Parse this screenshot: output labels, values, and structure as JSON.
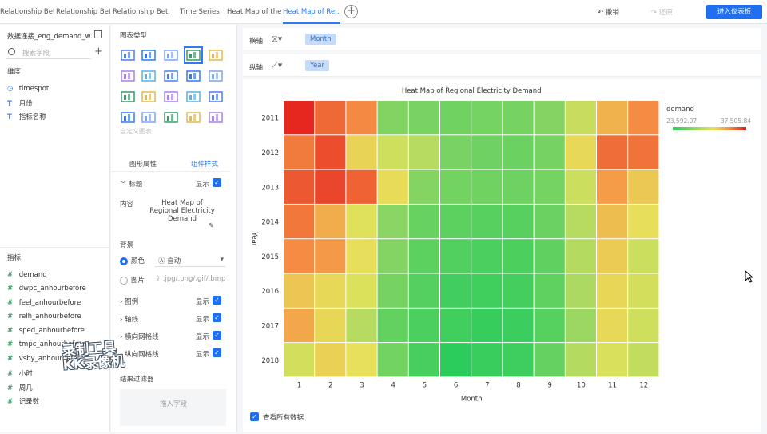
{
  "tabs": [
    {
      "label": "Relationship Bet...",
      "active": false
    },
    {
      "label": "Relationship Bet...",
      "active": false
    },
    {
      "label": "Relationship Bet...",
      "active": false
    },
    {
      "label": "Time Series",
      "active": false
    },
    {
      "label": "Heat Map of the...",
      "active": false
    },
    {
      "label": "Heat Map of Re...",
      "active": true
    }
  ],
  "toolbar": {
    "undo": "↶ 撤销",
    "redo": "↷ 还原",
    "primary": "进入仪表板"
  },
  "left": {
    "dataset": "数据连接_eng_demand_w...",
    "search_placeholder": "搜索字段",
    "dimension_title": "维度",
    "dimensions": [
      {
        "icon": "◷",
        "label": "timespot"
      },
      {
        "icon": "T",
        "label": "月份"
      },
      {
        "icon": "T",
        "label": "指标名称"
      }
    ],
    "measure_title": "指标",
    "measures": [
      {
        "icon": "#",
        "label": "demand"
      },
      {
        "icon": "#",
        "label": "dwpc_anhourbefore"
      },
      {
        "icon": "#",
        "label": "feel_anhourbefore"
      },
      {
        "icon": "#",
        "label": "relh_anhourbefore"
      },
      {
        "icon": "#",
        "label": "sped_anhourbefore"
      },
      {
        "icon": "#",
        "label": "tmpc_anhourbefore"
      },
      {
        "icon": "#",
        "label": "vsby_anhourbefore"
      },
      {
        "icon": "#",
        "label": "小时"
      },
      {
        "icon": "#",
        "label": "周几"
      },
      {
        "icon": "#",
        "label": "记录数"
      }
    ]
  },
  "mid": {
    "title": "图表类型",
    "custom_label": "自定义图表",
    "tab_props": "图形属性",
    "tab_style": "组件样式",
    "title_row": "标题",
    "show": "显示",
    "content_label": "内容",
    "content_value": "Heat Map of Regional Electricity Demand",
    "background_label": "背景",
    "color_label": "颜色",
    "auto_label": "自动",
    "image_label": "图片",
    "image_hint": ".jpg/.png/.gif/.bmp",
    "legend": "图例",
    "axis": "轴线",
    "hgrid": "横向网格线",
    "vgrid": "纵向网格线",
    "filter_label": "结果过滤器",
    "input_placeholder": "拖入字段"
  },
  "axes": {
    "x_label": "横轴",
    "x_field": "Month",
    "y_label": "纵轴",
    "y_field": "Year"
  },
  "footer": {
    "view_all": "查看所有数据"
  },
  "watermark": {
    "line1": "录制工具",
    "line2": "KK录像机"
  },
  "colors": {
    "accent": "#1f6ff0",
    "low": "#2ccc5c",
    "mid": "#e6e25a",
    "high": "#e41c1c"
  },
  "chart_data": {
    "type": "heatmap",
    "title": "Heat Map of Regional Electricity Demand",
    "xlabel": "Month",
    "ylabel": "Year",
    "x": [
      "1",
      "2",
      "3",
      "4",
      "5",
      "6",
      "7",
      "8",
      "9",
      "10",
      "11",
      "12"
    ],
    "y": [
      "2011",
      "2012",
      "2013",
      "2014",
      "2015",
      "2016",
      "2017",
      "2018"
    ],
    "values": [
      [
        37200,
        35300,
        34400,
        27500,
        27100,
        26700,
        26900,
        27000,
        27700,
        30200,
        33000,
        34300
      ],
      [
        34800,
        36100,
        31800,
        30400,
        29600,
        27100,
        26600,
        26500,
        27000,
        31600,
        35200,
        35000
      ],
      [
        35800,
        36300,
        35500,
        31500,
        27600,
        26800,
        26700,
        26600,
        26900,
        30300,
        33800,
        32200
      ],
      [
        34900,
        33200,
        31000,
        27900,
        26300,
        25800,
        25600,
        25600,
        26500,
        29600,
        32600,
        31400
      ],
      [
        34300,
        33900,
        31400,
        27600,
        25800,
        25300,
        25000,
        25100,
        26000,
        29500,
        32100,
        30300
      ],
      [
        32300,
        31600,
        30900,
        27000,
        25400,
        24600,
        24500,
        24700,
        25900,
        29200,
        31700,
        30600
      ],
      [
        33400,
        31700,
        29600,
        26100,
        25000,
        24500,
        24100,
        24300,
        25500,
        28700,
        31600,
        30400
      ],
      [
        30500,
        31900,
        31300,
        26800,
        24800,
        23600,
        24200,
        24400,
        26200,
        29500,
        30800,
        30000
      ]
    ],
    "legend_title": "demand",
    "legend_min": "23,592.07",
    "legend_max": "37,505.84",
    "vmin": 23592.07,
    "vmax": 37505.84
  }
}
